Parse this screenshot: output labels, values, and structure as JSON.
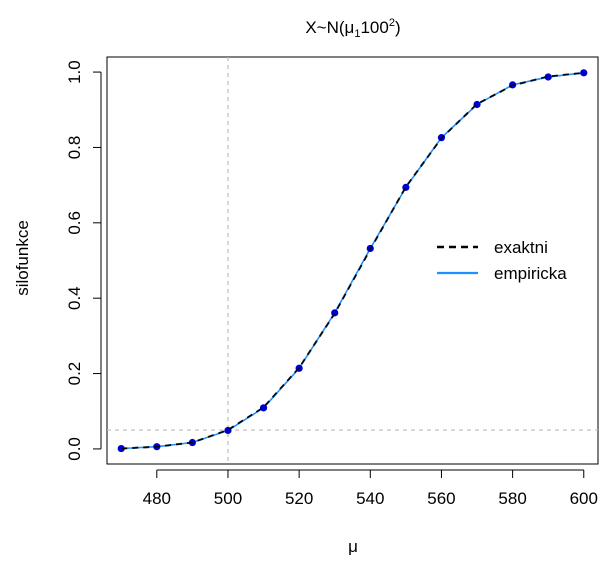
{
  "chart_data": {
    "type": "line",
    "title_main": "X~N(μ",
    "title_sub": "1",
    "title_mid": "100",
    "title_sup": "2",
    "title_end": ")",
    "xlabel": "μ",
    "ylabel": "silofunkce",
    "xlim": [
      466,
      604
    ],
    "ylim": [
      -0.04,
      1.04
    ],
    "x_ticks": [
      480,
      500,
      520,
      540,
      560,
      580,
      600
    ],
    "y_ticks": [
      0.0,
      0.2,
      0.4,
      0.6,
      0.8,
      1.0
    ],
    "y_tick_labels": [
      "0.0",
      "0.2",
      "0.4",
      "0.6",
      "0.8",
      "1.0"
    ],
    "reference_lines": {
      "vertical_x": 500,
      "horizontal_y": 0.05
    },
    "legend_position": "right",
    "x": [
      470,
      480,
      490,
      500,
      510,
      520,
      530,
      540,
      550,
      560,
      570,
      580,
      590,
      600
    ],
    "series": [
      {
        "name": "exaktni",
        "style": "dashed",
        "color": "#000000",
        "values": [
          0.001,
          0.006,
          0.017,
          0.05,
          0.11,
          0.215,
          0.36,
          0.53,
          0.695,
          0.825,
          0.915,
          0.965,
          0.988,
          0.998
        ]
      },
      {
        "name": "empiricka",
        "style": "solid",
        "color": "#1e90ff",
        "markers": true,
        "marker_color": "#0000cc",
        "values": [
          0.001,
          0.006,
          0.017,
          0.049,
          0.109,
          0.214,
          0.361,
          0.532,
          0.694,
          0.826,
          0.914,
          0.966,
          0.987,
          0.998
        ]
      }
    ]
  }
}
